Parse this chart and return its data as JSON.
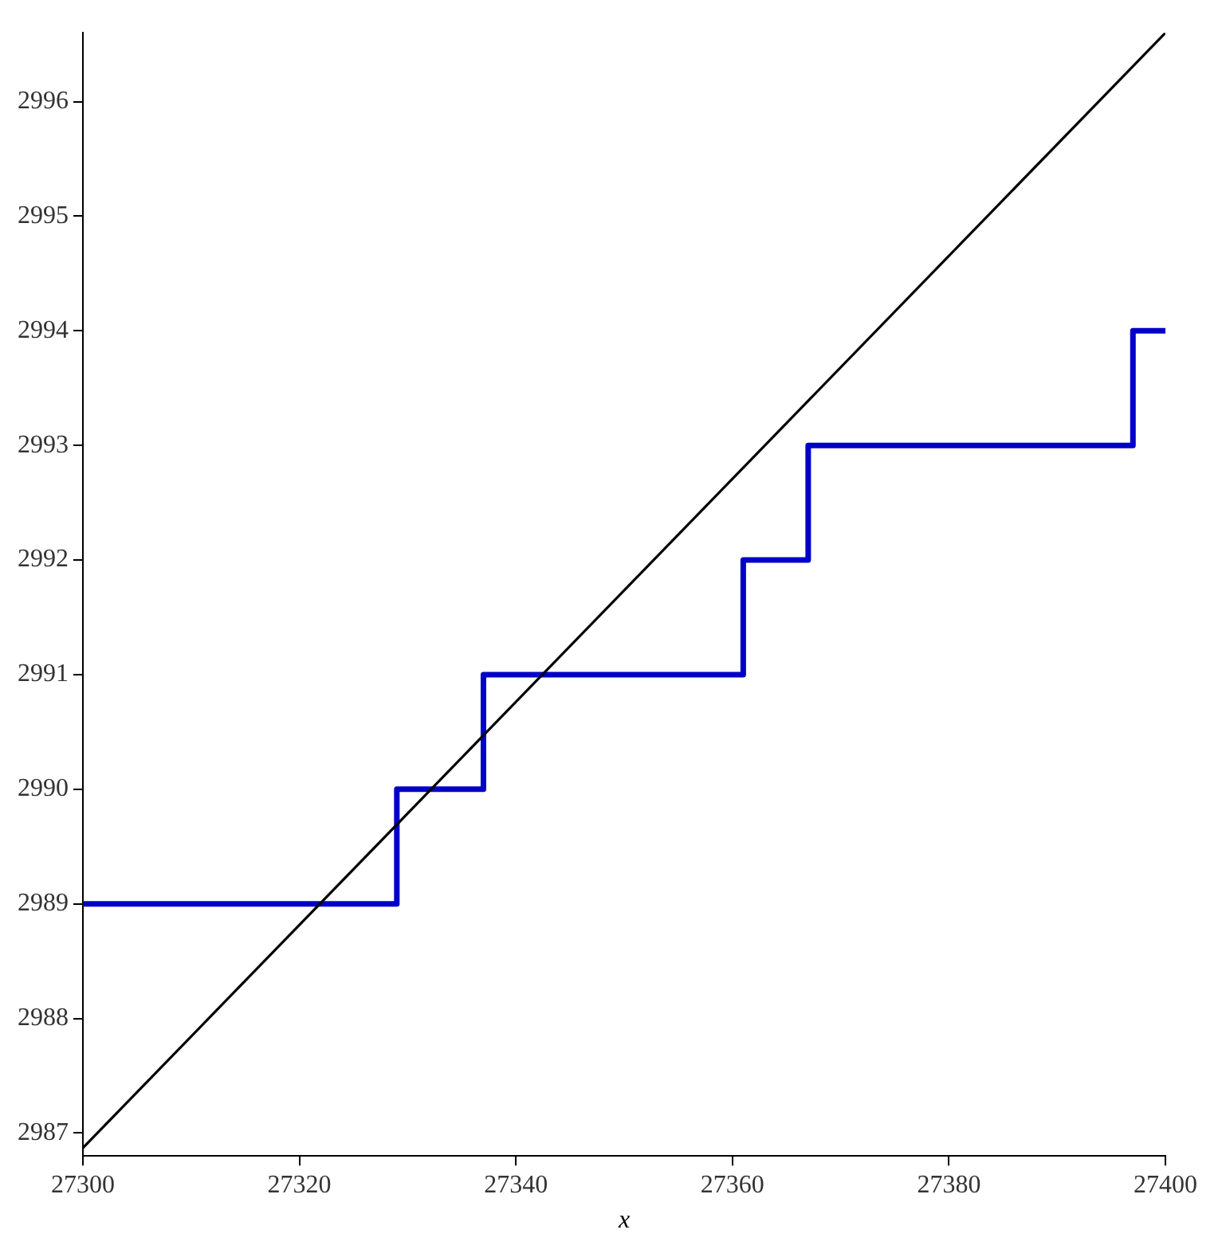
{
  "chart_data": {
    "type": "line",
    "xlabel": "x",
    "xlim": [
      27300,
      27400
    ],
    "xticks": [
      27300,
      27320,
      27340,
      27360,
      27380,
      27400
    ],
    "ylim": [
      2986.8,
      2996.6
    ],
    "yticks": [
      2987,
      2988,
      2989,
      2990,
      2991,
      2992,
      2993,
      2994,
      2995,
      2996
    ],
    "grid": false,
    "legend": false,
    "marker": "none",
    "line_style": "solid",
    "series": [
      {
        "type": "line",
        "color": "#000000",
        "x": [
          27300,
          27400
        ],
        "values": [
          2986.87,
          2996.6
        ]
      },
      {
        "type": "step",
        "color": "#0000c8",
        "x": [
          27300,
          27329,
          27337,
          27361,
          27367,
          27397,
          27400
        ],
        "values": [
          2989,
          2990,
          2991,
          2992,
          2993,
          2994,
          2994
        ]
      }
    ]
  }
}
